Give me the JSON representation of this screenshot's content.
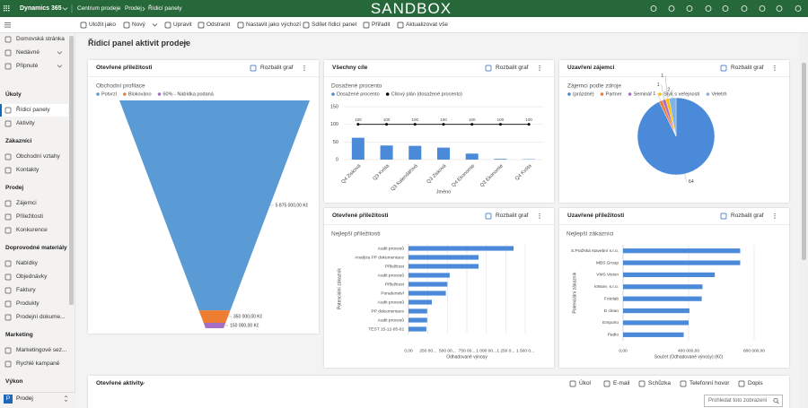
{
  "header": {
    "app_name": "Dynamics 365",
    "app_area": "Centrum prodeje",
    "breadcrumb": [
      "Prodej",
      "Řídicí panely"
    ],
    "environment": "SANDBOX"
  },
  "command_bar": [
    "Uložit jako",
    "Nový",
    "Upravit",
    "Odstranit",
    "Nastavit jako výchozí",
    "Sdílet řídicí panel",
    "Přiřadit",
    "Aktualizovat vše"
  ],
  "sidebar": {
    "top": [
      "Domovská stránka",
      "Nedávné",
      "Připnuté"
    ],
    "groups": [
      {
        "title": "Úkoly",
        "items": [
          "Řídicí panely",
          "Aktivity"
        ]
      },
      {
        "title": "Zákazníci",
        "items": [
          "Obchodní vztahy",
          "Kontakty"
        ]
      },
      {
        "title": "Prodej",
        "items": [
          "Zájemci",
          "Příležitosti",
          "Konkurence"
        ]
      },
      {
        "title": "Doprovodné materiály",
        "items": [
          "Nabídky",
          "Objednávky",
          "Faktury",
          "Produkty",
          "Prodejní dokume..."
        ]
      },
      {
        "title": "Marketing",
        "items": [
          "Marketingové sez...",
          "Rychlé kampaně"
        ]
      },
      {
        "title": "Výkon",
        "items": []
      }
    ],
    "area_switcher": {
      "badge": "P",
      "label": "Prodej"
    }
  },
  "dashboard_title": "Řídicí panel aktivit prodeje",
  "expand_chart": "Rozbalit graf",
  "cards": [
    {
      "title": "Otevřené příležitosti",
      "chart_data": {
        "type": "funnel",
        "subtitle": "Obchodní profilace",
        "categories": [
          "Potvrzl",
          "Blokováno",
          "60% - Nabídka podaná"
        ],
        "colors": [
          "#5b9bd5",
          "#ed7d31",
          "#a66fc6"
        ],
        "values": [
          5875000,
          350000,
          150000
        ],
        "value_labels": [
          "5 875 000,00 Kč",
          "350 000,00 Kč",
          "150 000,00 Kč"
        ]
      }
    },
    {
      "title": "Všechny cíle",
      "chart_data": {
        "type": "combo",
        "subtitle": "Dosažené procento",
        "categories": [
          "Q4 Zisková",
          "Q3 Kvóta",
          "Q3 Kalendářová",
          "Q3 Zisková",
          "Q4 Ekonomie",
          "Q3 Ekonomie",
          "Q4 Kvóta"
        ],
        "xlabel": "Jméno",
        "ylim": [
          0,
          150
        ],
        "yticks": [
          0,
          50,
          100,
          150
        ],
        "grid": true,
        "series": [
          {
            "name": "Dosažené procento",
            "type": "bar",
            "color": "#4a8ad8",
            "values": [
              62,
              40,
              39,
              34,
              17,
              2,
              1
            ]
          },
          {
            "name": "Cílový plán (dosažené procento)",
            "type": "line",
            "color": "#000000",
            "values": [
              100,
              100,
              100,
              100,
              100,
              100,
              100
            ]
          }
        ]
      }
    },
    {
      "title": "Uzavření zájemci",
      "chart_data": {
        "type": "pie",
        "subtitle": "Zájemci podle zdroje",
        "categories": [
          "(prázdné)",
          "Partner",
          "Seminář",
          "Styk s veřejností",
          "Veletrh"
        ],
        "colors": [
          "#4a8ad8",
          "#ed7d31",
          "#a66fc6",
          "#ffc000",
          "#7fb2e5"
        ],
        "values": [
          64,
          1,
          1,
          1,
          2
        ]
      }
    },
    {
      "title": "Otevřené příležitosti",
      "chart_data": {
        "type": "hbar",
        "subtitle": "Nejlepší příležitosti",
        "categories": [
          "Audit procesů",
          "Analýza PP dokumentace",
          "Příležitost",
          "Audit procesů",
          "Příležitost",
          "Poradenství",
          "Audit procesů",
          "PP dokumentace",
          "Audit procesů",
          "TEST 15-12-05-02"
        ],
        "values": [
          1350000,
          900000,
          900000,
          530000,
          500000,
          480000,
          300000,
          240000,
          240000,
          230000
        ],
        "color": "#4a8ad8",
        "xlim": [
          0,
          1500000
        ],
        "xticks": [
          {
            "value": 0,
            "label": "0,00"
          },
          {
            "value": 250000,
            "label": "250 00..."
          },
          {
            "value": 500000,
            "label": "500 00..."
          },
          {
            "value": 750000,
            "label": "750 00..."
          },
          {
            "value": 1000000,
            "label": "1 000 00..."
          },
          {
            "value": 1250000,
            "label": "1 250 0..."
          },
          {
            "value": 1500000,
            "label": "1 500 0..."
          }
        ],
        "xlabel": "Odhadované výnosy",
        "ylabel": "Potenciální zákazník",
        "grid": true
      }
    },
    {
      "title": "Uzavřené příležitosti",
      "chart_data": {
        "type": "hbar",
        "subtitle": "Nejlepší zákazníci",
        "categories": [
          "S.Pražská stavební s.r.o.",
          "MBS Group",
          "VMS Vision",
          "kWare, s.r.o.",
          "Fotolab",
          "D clean",
          "Emporio",
          "Padio"
        ],
        "values": [
          715000,
          715000,
          560000,
          485000,
          480000,
          405000,
          400000,
          370000
        ],
        "color": "#4a8ad8",
        "xlim": [
          0,
          800000
        ],
        "xticks": [
          {
            "value": 0,
            "label": "0,00"
          },
          {
            "value": 400000,
            "label": "400 000,00"
          },
          {
            "value": 800000,
            "label": "800 000,00"
          }
        ],
        "xlabel": "Součet (Odhadované výnosy) (Kč)",
        "ylabel": "Potenciální zákazník",
        "grid": true
      }
    }
  ],
  "activities": {
    "title": "Otevřené aktivity",
    "actions": [
      "Úkol",
      "E-mail",
      "Schůzka",
      "Telefonní hovor",
      "Dopis"
    ],
    "search_placeholder": "Prohledat toto zobrazení"
  }
}
